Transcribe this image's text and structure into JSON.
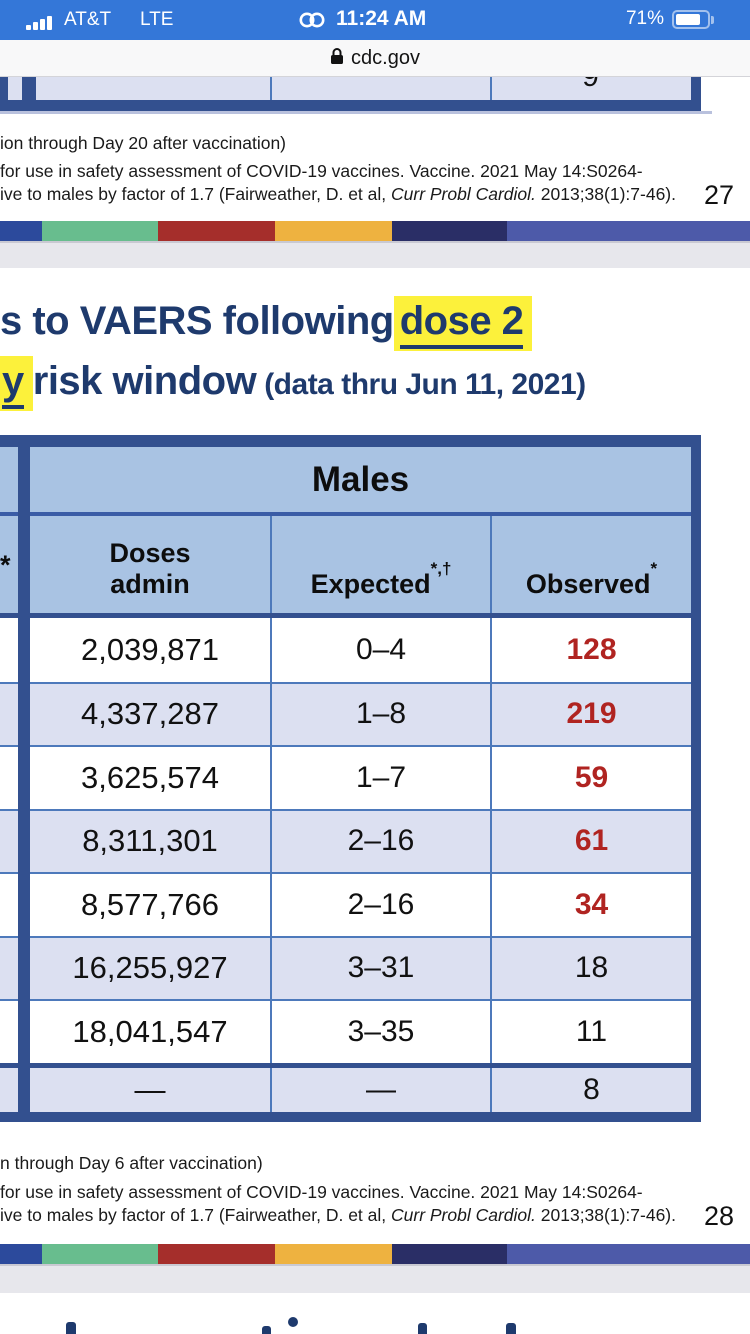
{
  "status_bar": {
    "carrier": "AT&T",
    "network": "LTE",
    "time": "11:24 AM",
    "battery_percent": "71%"
  },
  "url_bar": {
    "domain": "cdc.gov"
  },
  "slide_prev": {
    "partial_observed_value": "9",
    "footnote_line1": "ion through Day 20 after vaccination)",
    "footnote_line2": "for use in safety assessment of COVID-19 vaccines. Vaccine. 2021 May 14:S0264-",
    "footnote_line3_pre": "ive to males by factor of 1.7 (Fairweather, D. et al, ",
    "footnote_line3_italic": "Curr Probl Cardiol.",
    "footnote_line3_post": " 2013;38(1):7-46).",
    "page_number": "27"
  },
  "slide": {
    "title_line1_text": "s to VAERS following ",
    "title_line1_highlight": "dose 2",
    "title_line2_highlight": "y",
    "title_line2_text": " risk window ",
    "title_line2_note": "(data thru Jun 11, 2021)",
    "table": {
      "group_header": "Males",
      "left_column_marker": "*",
      "col_doses_line1": "Doses",
      "col_doses_line2": "admin",
      "col_expected": "Expected",
      "col_expected_sup": "*,†",
      "col_observed": "Observed",
      "col_observed_sup": "*",
      "rows": [
        {
          "doses": "2,039,871",
          "expected": "0–4",
          "observed": "128",
          "observed_highlight": true,
          "is_total": false
        },
        {
          "doses": "4,337,287",
          "expected": "1–8",
          "observed": "219",
          "observed_highlight": true,
          "is_total": false
        },
        {
          "doses": "3,625,574",
          "expected": "1–7",
          "observed": "59",
          "observed_highlight": true,
          "is_total": false
        },
        {
          "doses": "8,311,301",
          "expected": "2–16",
          "observed": "61",
          "observed_highlight": true,
          "is_total": false
        },
        {
          "doses": "8,577,766",
          "expected": "2–16",
          "observed": "34",
          "observed_highlight": true,
          "is_total": false
        },
        {
          "doses": "16,255,927",
          "expected": "3–31",
          "observed": "18",
          "observed_highlight": false,
          "is_total": false
        },
        {
          "doses": "18,041,547",
          "expected": "3–35",
          "observed": "11",
          "observed_highlight": false,
          "is_total": false
        },
        {
          "doses": "—",
          "expected": "—",
          "observed": "8",
          "observed_highlight": false,
          "is_total": true
        }
      ]
    },
    "footnote_line1": "n through Day 6 after vaccination)",
    "footnote_line2": "for use in safety assessment of COVID-19 vaccines. Vaccine. 2021 May 14:S0264-",
    "footnote_line3_pre": "ive to males by factor of 1.7 (Fairweather, D. et al, ",
    "footnote_line3_italic": "Curr Probl Cardiol.",
    "footnote_line3_post": " 2013;38(1):7-46).",
    "page_number": "28"
  },
  "colors": {
    "status_bar_blue": "#3477d8",
    "title_navy": "#1e3a6d",
    "highlight_yellow": "#fcf13b",
    "observed_red": "#b02421",
    "table_header_blue": "#a9c3e3",
    "row_lavender": "#dce0f1",
    "table_border_navy": "#33508f",
    "table_border_thin": "#4d79bb",
    "stripe_colors": [
      "#2c4a9c",
      "#68bd8e",
      "#a52e2b",
      "#eeb240",
      "#2a2e66",
      "#4d5aa9"
    ]
  }
}
